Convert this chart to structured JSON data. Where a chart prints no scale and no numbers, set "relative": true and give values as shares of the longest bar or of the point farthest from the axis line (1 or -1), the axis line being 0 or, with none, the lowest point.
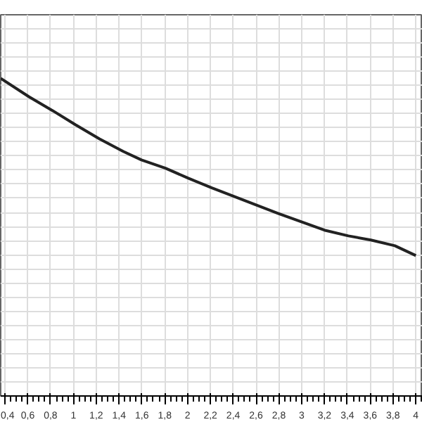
{
  "chart_data": {
    "type": "line",
    "relative": true,
    "color": "#222222",
    "x": [
      0.363,
      0.61,
      0.819,
      1.017,
      1.226,
      1.436,
      1.596,
      1.806,
      2.003,
      2.213,
      2.792,
      3.199,
      3.409,
      3.606,
      3.816,
      4.0
    ],
    "values": [
      1,
      0.942,
      0.898,
      0.854,
      0.81,
      0.77,
      0.743,
      0.717,
      0.686,
      0.655,
      0.575,
      0.522,
      0.504,
      0.491,
      0.473,
      0.442
    ],
    "xlim": [
      0.363,
      4.06
    ],
    "xticks": [
      {
        "value": 0.4,
        "label": "0,4"
      },
      {
        "value": 0.6,
        "label": "0,6"
      },
      {
        "value": 0.8,
        "label": "0,8"
      },
      1,
      {
        "value": 1.2,
        "label": "1,2"
      },
      {
        "value": 1.4,
        "label": "1,4"
      },
      {
        "value": 1.6,
        "label": "1,6"
      },
      {
        "value": 1.8,
        "label": "1,8"
      },
      2,
      {
        "value": 2.2,
        "label": "2,2"
      },
      {
        "value": 2.4,
        "label": "2,4"
      },
      {
        "value": 2.6,
        "label": "2,6"
      },
      {
        "value": 2.8,
        "label": "2,8"
      },
      3,
      {
        "value": 3.2,
        "label": "3,2"
      },
      {
        "value": 3.4,
        "label": "3,4"
      },
      {
        "value": 3.6,
        "label": "3,6"
      },
      {
        "value": 3.8,
        "label": "3,8"
      },
      4
    ],
    "grid": true,
    "tick_labels": "x",
    "marker": "none",
    "line_style": "solid"
  }
}
